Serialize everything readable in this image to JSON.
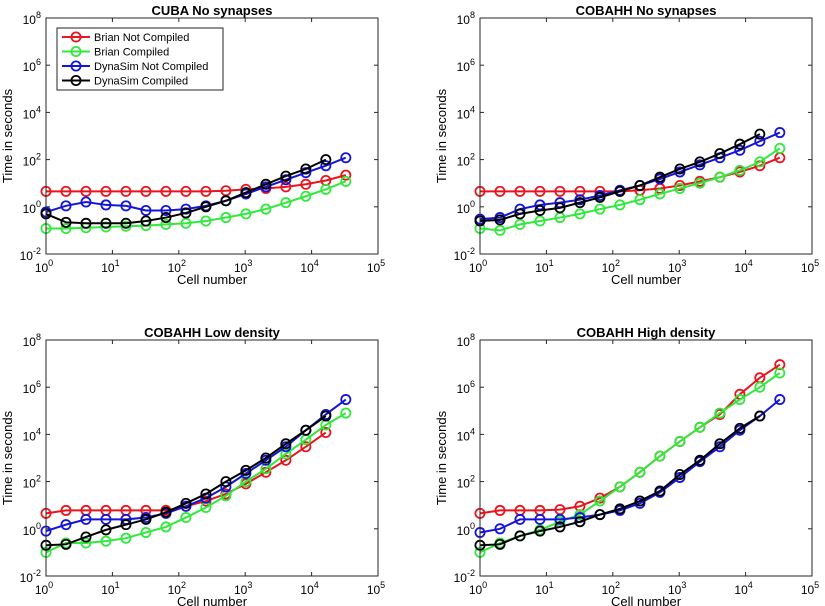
{
  "chart_data": [
    {
      "type": "line",
      "title": "CUBA No synapses",
      "xlabel": "Cell number",
      "ylabel": "Time in seconds",
      "xscale": "log",
      "yscale": "log",
      "xlim": [
        1,
        100000
      ],
      "ylim": [
        0.01,
        100000000
      ],
      "xticks": [
        {
          "v": 1,
          "m": "0"
        },
        {
          "v": 10,
          "m": "1"
        },
        {
          "v": 100,
          "m": "2"
        },
        {
          "v": 1000,
          "m": "3"
        },
        {
          "v": 10000,
          "m": "4"
        },
        {
          "v": 100000,
          "m": "5"
        }
      ],
      "yticks": [
        {
          "v": 0.01,
          "m": "-2"
        },
        {
          "v": 1,
          "m": "0"
        },
        {
          "v": 100,
          "m": "2"
        },
        {
          "v": 10000,
          "m": "4"
        },
        {
          "v": 1000000,
          "m": "6"
        },
        {
          "v": 100000000,
          "m": "8"
        }
      ],
      "tick_base": "10",
      "legend": "top-left",
      "x": [
        1,
        2,
        4,
        8,
        16,
        32,
        64,
        128,
        256,
        512,
        1024,
        2048,
        4096,
        8192,
        16384,
        32768
      ],
      "series": [
        {
          "name": "Brian Not Compiled",
          "color": "#e8141e",
          "values": [
            4.5,
            4.5,
            4.5,
            4.5,
            4.5,
            4.5,
            4.5,
            4.5,
            4.5,
            4.8,
            5.5,
            6,
            7,
            9,
            13,
            22
          ]
        },
        {
          "name": "Brian Compiled",
          "color": "#31e83c",
          "values": [
            0.12,
            0.12,
            0.13,
            0.14,
            0.15,
            0.16,
            0.18,
            0.2,
            0.25,
            0.35,
            0.5,
            0.8,
            1.5,
            2.8,
            5.5,
            12
          ]
        },
        {
          "name": "DynaSim Not Compiled",
          "color": "#1414d8",
          "values": [
            0.6,
            1.1,
            1.6,
            1.2,
            1.1,
            0.7,
            0.7,
            0.8,
            1.1,
            1.8,
            3.5,
            7,
            14,
            28,
            55,
            120
          ]
        },
        {
          "name": "DynaSim Compiled",
          "color": "#000000",
          "values": [
            0.5,
            0.22,
            0.2,
            0.2,
            0.2,
            0.25,
            0.35,
            0.55,
            1.0,
            1.8,
            4.0,
            9,
            20,
            40,
            100,
            null
          ]
        }
      ]
    },
    {
      "type": "line",
      "title": "COBAHH No synapses",
      "xlabel": "Cell number",
      "ylabel": "Time in seconds",
      "xscale": "log",
      "yscale": "log",
      "xlim": [
        1,
        100000
      ],
      "ylim": [
        0.01,
        100000000
      ],
      "xticks": [
        {
          "v": 1,
          "m": "0"
        },
        {
          "v": 10,
          "m": "1"
        },
        {
          "v": 100,
          "m": "2"
        },
        {
          "v": 1000,
          "m": "3"
        },
        {
          "v": 10000,
          "m": "4"
        },
        {
          "v": 100000,
          "m": "5"
        }
      ],
      "yticks": [
        {
          "v": 0.01,
          "m": "-2"
        },
        {
          "v": 1,
          "m": "0"
        },
        {
          "v": 100,
          "m": "2"
        },
        {
          "v": 10000,
          "m": "4"
        },
        {
          "v": 1000000,
          "m": "6"
        },
        {
          "v": 100000000,
          "m": "8"
        }
      ],
      "tick_base": "10",
      "x": [
        1,
        2,
        4,
        8,
        16,
        32,
        64,
        128,
        256,
        512,
        1024,
        2048,
        4096,
        8192,
        16384,
        32768
      ],
      "series": [
        {
          "name": "Brian Not Compiled",
          "color": "#e8141e",
          "values": [
            4.5,
            4.5,
            4.5,
            4.5,
            4.5,
            4.5,
            4.5,
            4.5,
            5,
            6,
            8,
            12,
            18,
            30,
            55,
            120
          ]
        },
        {
          "name": "Brian Compiled",
          "color": "#31e83c",
          "values": [
            0.12,
            0.1,
            0.18,
            0.25,
            0.35,
            0.5,
            0.8,
            1.2,
            2,
            3.5,
            6,
            10,
            18,
            35,
            80,
            300
          ]
        },
        {
          "name": "DynaSim Not Compiled",
          "color": "#1414d8",
          "values": [
            0.3,
            0.35,
            0.8,
            1.2,
            1.5,
            2,
            3,
            5,
            8,
            15,
            30,
            60,
            120,
            250,
            600,
            1400
          ]
        },
        {
          "name": "DynaSim Compiled",
          "color": "#000000",
          "values": [
            0.25,
            0.28,
            0.5,
            0.7,
            0.9,
            1.5,
            2.5,
            4.5,
            8,
            18,
            40,
            80,
            180,
            450,
            1200,
            null
          ]
        }
      ]
    },
    {
      "type": "line",
      "title": "COBAHH Low density",
      "xlabel": "Cell number",
      "ylabel": "Time in seconds",
      "xscale": "log",
      "yscale": "log",
      "xlim": [
        1,
        100000
      ],
      "ylim": [
        0.01,
        100000000
      ],
      "xticks": [
        {
          "v": 1,
          "m": "0"
        },
        {
          "v": 10,
          "m": "1"
        },
        {
          "v": 100,
          "m": "2"
        },
        {
          "v": 1000,
          "m": "3"
        },
        {
          "v": 10000,
          "m": "4"
        },
        {
          "v": 100000,
          "m": "5"
        }
      ],
      "yticks": [
        {
          "v": 0.01,
          "m": "-2"
        },
        {
          "v": 1,
          "m": "0"
        },
        {
          "v": 100,
          "m": "2"
        },
        {
          "v": 10000,
          "m": "4"
        },
        {
          "v": 1000000,
          "m": "6"
        },
        {
          "v": 100000000,
          "m": "8"
        }
      ],
      "tick_base": "10",
      "x": [
        1,
        2,
        4,
        8,
        16,
        32,
        64,
        128,
        256,
        512,
        1024,
        2048,
        4096,
        8192,
        16384,
        32768
      ],
      "series": [
        {
          "name": "Brian Not Compiled",
          "color": "#e8141e",
          "values": [
            4.5,
            6,
            6,
            6,
            6,
            6,
            6,
            9,
            15,
            30,
            80,
            250,
            800,
            3000,
            12000,
            null
          ]
        },
        {
          "name": "Brian Compiled",
          "color": "#31e83c",
          "values": [
            0.1,
            0.25,
            0.25,
            0.3,
            0.4,
            0.7,
            1.2,
            3,
            8,
            25,
            100,
            350,
            1500,
            6000,
            25000,
            80000
          ]
        },
        {
          "name": "DynaSim Not Compiled",
          "color": "#1414d8",
          "values": [
            0.8,
            1.5,
            2.5,
            2.5,
            2.5,
            3,
            4.5,
            9,
            20,
            60,
            220,
            800,
            3000,
            15000,
            70000,
            300000
          ]
        },
        {
          "name": "DynaSim Compiled",
          "color": "#000000",
          "values": [
            0.2,
            0.22,
            0.45,
            0.9,
            1.5,
            2.5,
            5,
            12,
            30,
            100,
            300,
            1000,
            4000,
            15000,
            60000,
            null
          ]
        }
      ]
    },
    {
      "type": "line",
      "title": "COBAHH High density",
      "xlabel": "Cell number",
      "ylabel": "Time in seconds",
      "xscale": "log",
      "yscale": "log",
      "xlim": [
        1,
        100000
      ],
      "ylim": [
        0.01,
        100000000
      ],
      "xticks": [
        {
          "v": 1,
          "m": "0"
        },
        {
          "v": 10,
          "m": "1"
        },
        {
          "v": 100,
          "m": "2"
        },
        {
          "v": 1000,
          "m": "3"
        },
        {
          "v": 10000,
          "m": "4"
        },
        {
          "v": 100000,
          "m": "5"
        }
      ],
      "yticks": [
        {
          "v": 0.01,
          "m": "-2"
        },
        {
          "v": 1,
          "m": "0"
        },
        {
          "v": 100,
          "m": "2"
        },
        {
          "v": 10000,
          "m": "4"
        },
        {
          "v": 1000000,
          "m": "6"
        },
        {
          "v": 100000000,
          "m": "8"
        }
      ],
      "tick_base": "10",
      "x": [
        1,
        2,
        4,
        8,
        16,
        32,
        64,
        128,
        256,
        512,
        1024,
        2048,
        4096,
        8192,
        16384,
        32768
      ],
      "series": [
        {
          "name": "Brian Not Compiled",
          "color": "#e8141e",
          "values": [
            4.5,
            6,
            6,
            6,
            6.5,
            9,
            20,
            60,
            250,
            1200,
            5000,
            20000,
            70000,
            500000,
            2500000,
            9000000
          ]
        },
        {
          "name": "Brian Compiled",
          "color": "#31e83c",
          "values": [
            0.1,
            0.25,
            0.5,
            0.9,
            2,
            4,
            15,
            60,
            250,
            1200,
            5000,
            20000,
            80000,
            300000,
            1000000,
            4000000
          ]
        },
        {
          "name": "DynaSim Not Compiled",
          "color": "#1414d8",
          "values": [
            0.7,
            1,
            2.5,
            2.5,
            2.5,
            3,
            4,
            6,
            12,
            35,
            150,
            700,
            3000,
            15000,
            60000,
            300000
          ]
        },
        {
          "name": "DynaSim Compiled",
          "color": "#000000",
          "values": [
            0.2,
            0.22,
            0.5,
            0.8,
            1.2,
            2,
            4,
            7,
            15,
            40,
            200,
            800,
            4000,
            18000,
            60000,
            null
          ]
        }
      ]
    }
  ]
}
